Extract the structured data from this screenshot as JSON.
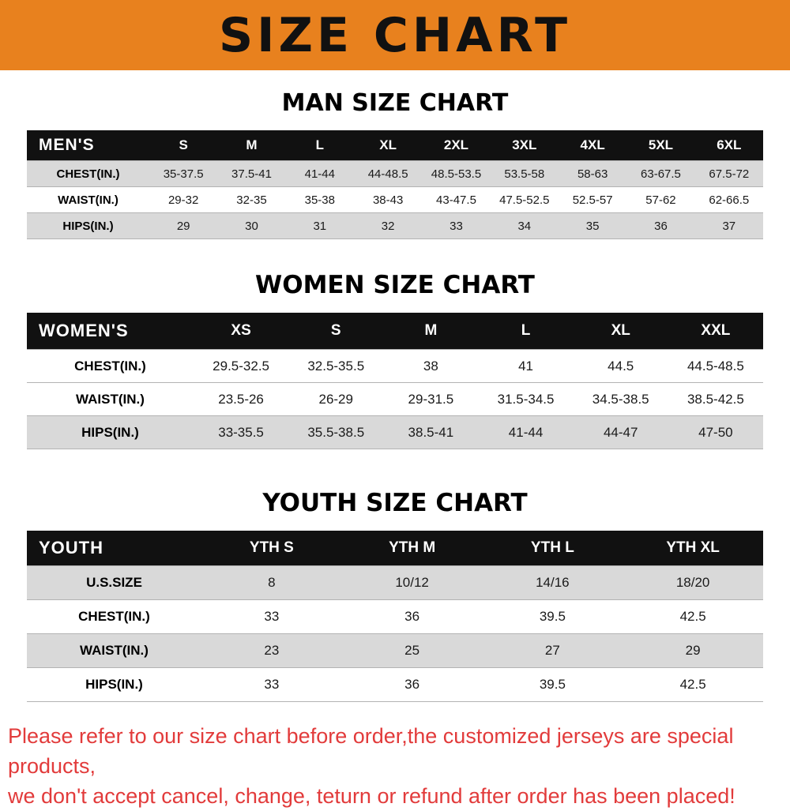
{
  "banner": {
    "title": "SIZE CHART"
  },
  "colors": {
    "banner_bg": "#e8811e",
    "table_header_bg": "#111111",
    "shaded_row": "#d9d9d9",
    "notice_text": "#e23b3b"
  },
  "sections": [
    {
      "heading": "MAN SIZE CHART",
      "table": {
        "header": [
          "MEN'S",
          "S",
          "M",
          "L",
          "XL",
          "2XL",
          "3XL",
          "4XL",
          "5XL",
          "6XL"
        ],
        "rows": [
          [
            "CHEST(IN.)",
            "35-37.5",
            "37.5-41",
            "41-44",
            "44-48.5",
            "48.5-53.5",
            "53.5-58",
            "58-63",
            "63-67.5",
            "67.5-72"
          ],
          [
            "WAIST(IN.)",
            "29-32",
            "32-35",
            "35-38",
            "38-43",
            "43-47.5",
            "47.5-52.5",
            "52.5-57",
            "57-62",
            "62-66.5"
          ],
          [
            "HIPS(IN.)",
            "29",
            "30",
            "31",
            "32",
            "33",
            "34",
            "35",
            "36",
            "37"
          ]
        ]
      }
    },
    {
      "heading": "WOMEN SIZE CHART",
      "table": {
        "header": [
          "WOMEN'S",
          "XS",
          "S",
          "M",
          "L",
          "XL",
          "XXL"
        ],
        "rows": [
          [
            "CHEST(IN.)",
            "29.5-32.5",
            "32.5-35.5",
            "38",
            "41",
            "44.5",
            "44.5-48.5"
          ],
          [
            "WAIST(IN.)",
            "23.5-26",
            "26-29",
            "29-31.5",
            "31.5-34.5",
            "34.5-38.5",
            "38.5-42.5"
          ],
          [
            "HIPS(IN.)",
            "33-35.5",
            "35.5-38.5",
            "38.5-41",
            "41-44",
            "44-47",
            "47-50"
          ]
        ]
      }
    },
    {
      "heading": "YOUTH SIZE CHART",
      "table": {
        "header": [
          "YOUTH",
          "YTH S",
          "YTH M",
          "YTH L",
          "YTH XL"
        ],
        "rows": [
          [
            "U.S.SIZE",
            "8",
            "10/12",
            "14/16",
            "18/20"
          ],
          [
            "CHEST(IN.)",
            "33",
            "36",
            "39.5",
            "42.5"
          ],
          [
            "WAIST(IN.)",
            "23",
            "25",
            "27",
            "29"
          ],
          [
            "HIPS(IN.)",
            "33",
            "36",
            "39.5",
            "42.5"
          ]
        ]
      }
    }
  ],
  "footer": {
    "line1": "Please refer to our size chart before order,the customized jerseys are special products,",
    "line2": "we don't accept cancel, change, teturn or refund after order has been placed!"
  }
}
